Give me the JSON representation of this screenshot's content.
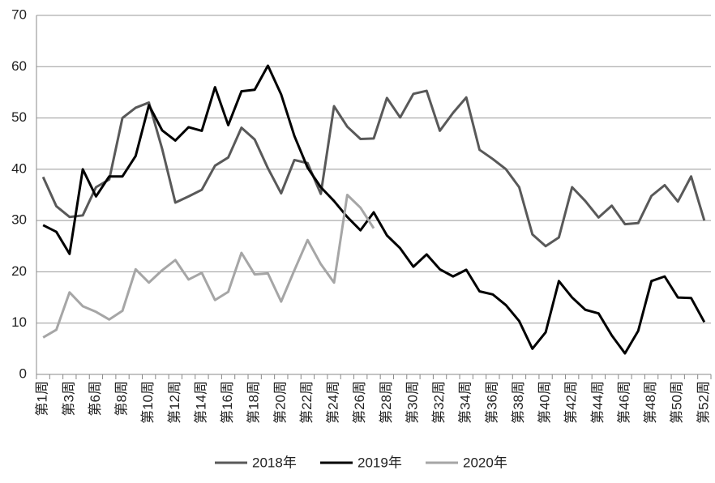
{
  "chart_data": {
    "type": "line",
    "categories": [
      "第1周",
      null,
      "第3周",
      null,
      "第6周",
      null,
      "第8周",
      null,
      "第10周",
      null,
      "第12周",
      null,
      "第14周",
      null,
      "第16周",
      null,
      "第18周",
      null,
      "第20周",
      null,
      "第22周",
      null,
      "第24周",
      null,
      "第26周",
      null,
      "第28周",
      null,
      "第30周",
      null,
      "第32周",
      null,
      "第34周",
      null,
      "第36周",
      null,
      "第38周",
      null,
      "第40周",
      null,
      "第42周",
      null,
      "第44周",
      null,
      "第46周",
      null,
      "第48周",
      null,
      "第50周",
      null,
      "第52周"
    ],
    "series": [
      {
        "name": "2018年",
        "color": "#595959",
        "values": [
          38.5,
          32.8,
          30.7,
          31,
          36.5,
          38,
          50,
          52,
          53,
          44,
          33.5,
          34.7,
          36,
          40.7,
          42.3,
          48.1,
          45.8,
          40.2,
          35.3,
          41.8,
          41.2,
          35.2,
          52.3,
          48.3,
          45.9,
          46,
          53.9,
          50.1,
          54.7,
          55.3,
          47.5,
          51,
          54,
          43.8,
          42,
          40,
          36.5,
          27.3,
          25,
          26.7,
          36.5,
          33.8,
          30.6,
          32.9,
          29.3,
          29.5,
          34.8,
          36.9,
          33.7,
          38.6,
          30
        ]
      },
      {
        "name": "2019年",
        "color": "#000000",
        "values": [
          29.1,
          27.8,
          23.5,
          40,
          34.7,
          38.6,
          38.6,
          42.6,
          52.5,
          47.6,
          45.6,
          48.2,
          47.5,
          56,
          48.6,
          55.2,
          55.5,
          60.2,
          54.6,
          46.5,
          40.3,
          36.5,
          33.8,
          30.7,
          28.1,
          31.6,
          27.1,
          24.6,
          21,
          23.4,
          20.5,
          19.1,
          20.4,
          16.2,
          15.6,
          13.5,
          10.4,
          5,
          8.2,
          18.2,
          15,
          12.6,
          11.9,
          7.6,
          4.1,
          8.5,
          18.2,
          19.1,
          15,
          14.9,
          10.2
        ]
      },
      {
        "name": "2020年",
        "color": "#a6a6a6",
        "values": [
          7.2,
          8.7,
          16,
          13.3,
          12.2,
          10.7,
          12.4,
          20.5,
          17.9,
          20.3,
          22.3,
          18.5,
          19.8,
          14.5,
          16.1,
          23.7,
          19.5,
          19.7,
          14.2,
          20.3,
          26.2,
          21.5,
          17.9,
          35,
          32.5,
          28.5,
          null,
          null,
          null,
          null,
          null,
          null,
          null,
          null,
          null,
          null,
          null,
          null,
          null,
          null,
          null,
          null,
          null,
          null,
          null,
          null,
          null,
          null,
          null,
          null,
          null
        ]
      }
    ],
    "ylim": [
      0,
      70
    ],
    "yticks": [
      0,
      10,
      20,
      30,
      40,
      50,
      60,
      70
    ],
    "grid": true,
    "legend": "bottom"
  }
}
